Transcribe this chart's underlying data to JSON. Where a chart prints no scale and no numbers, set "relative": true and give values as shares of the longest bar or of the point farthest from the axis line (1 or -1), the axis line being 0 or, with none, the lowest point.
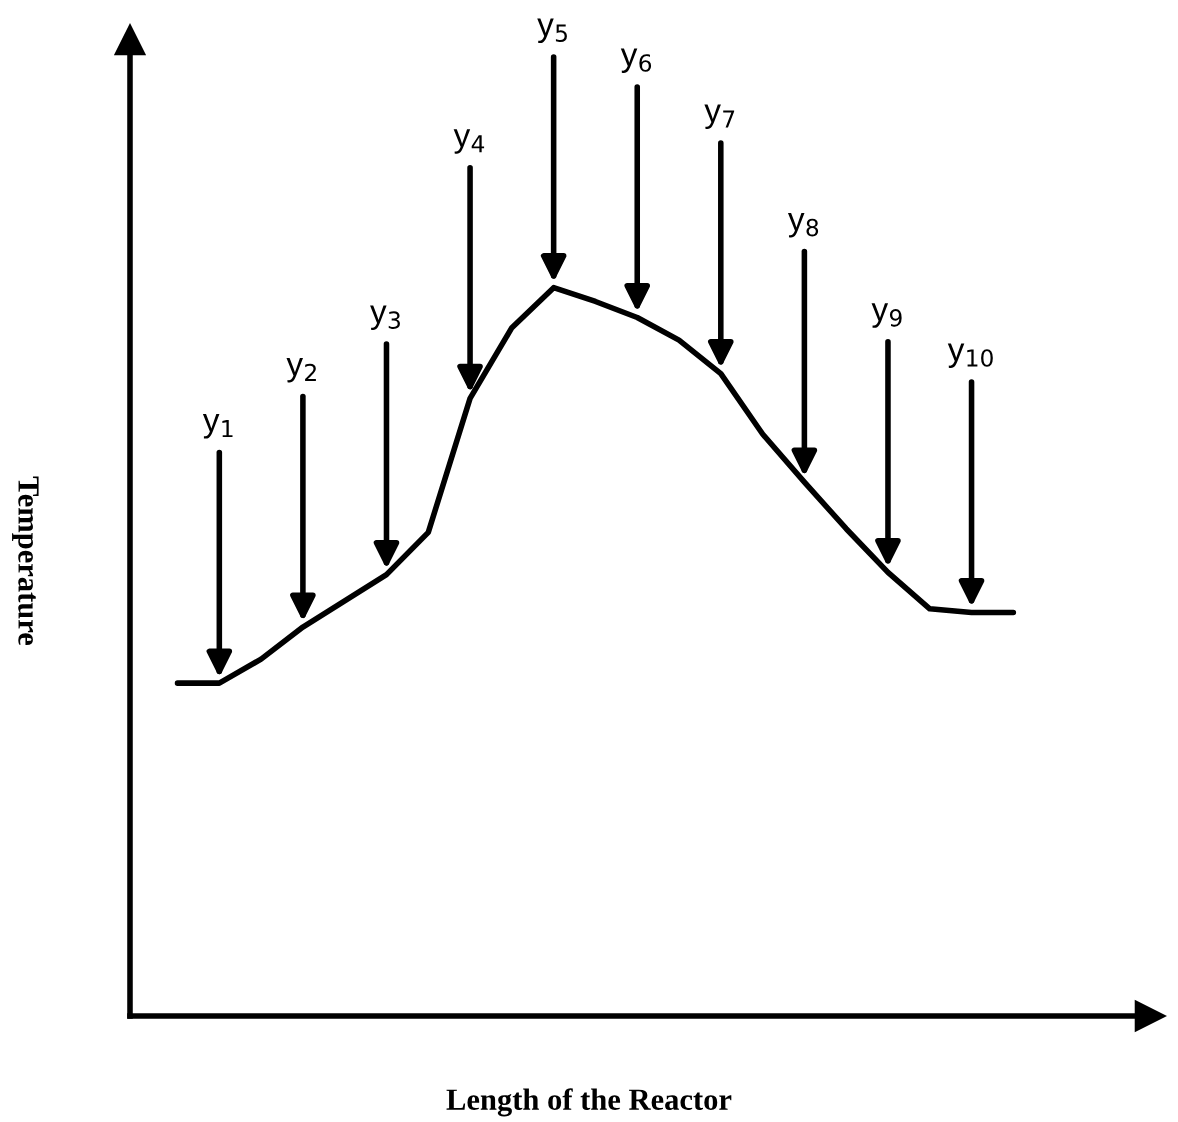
{
  "chart_data": {
    "type": "line",
    "relative": true,
    "xlabel": "Length of the Reactor",
    "ylabel": "Temperature",
    "marker": "none",
    "line_style": "solid",
    "categories": [
      null,
      null,
      null,
      null,
      null,
      null,
      null,
      null,
      null,
      null,
      null,
      null,
      null,
      null,
      null,
      null,
      null,
      null,
      null,
      null,
      null
    ],
    "series": [
      {
        "color": "#000000",
        "values": [
          0.457,
          0.457,
          0.49,
          0.534,
          0.57,
          0.606,
          0.664,
          0.848,
          0.945,
          1.0,
          0.981,
          0.959,
          0.928,
          0.882,
          0.799,
          0.733,
          0.669,
          0.609,
          0.559,
          0.554,
          0.554
        ],
        "name": null
      }
    ],
    "annotations": [
      "y$_{1}$",
      "y$_{2}$",
      "y$_{3}$",
      "y$_{4}$",
      "y$_{5}$",
      "y$_{6}$",
      "y$_{7}$",
      "y$_{8}$",
      "y$_{9}$",
      "y$_{10}$"
    ]
  }
}
